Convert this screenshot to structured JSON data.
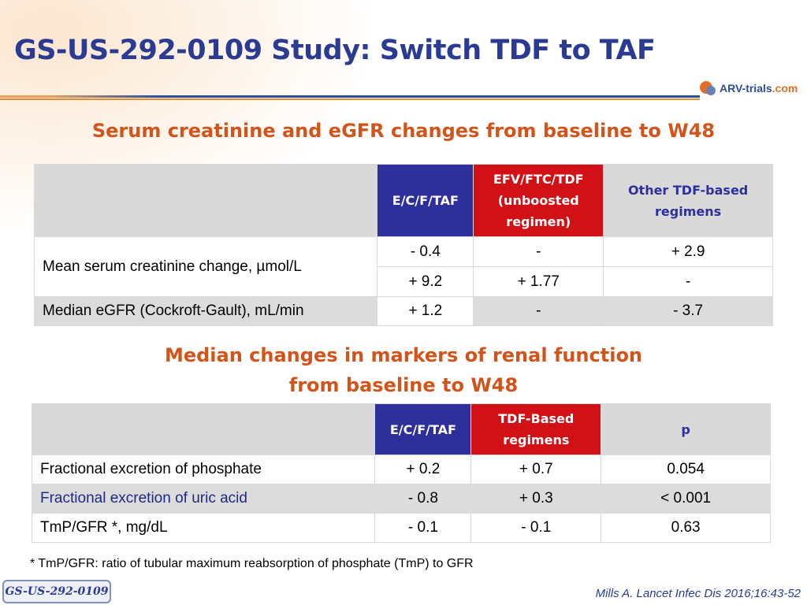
{
  "slide": {
    "title": "GS-US-292-0109 Study: Switch TDF to TAF",
    "logo": {
      "text_main": "ARV-trials",
      "text_suffix": ".com"
    },
    "section1_title": "Serum creatinine and eGFR changes from baseline to W48",
    "section2_title_line1": "Median changes in markers of renal function",
    "section2_title_line2": "from baseline to W48",
    "footnote": "* TmP/GFR: ratio of tubular maximum reabsorption of phosphate (TmP) to GFR",
    "study_badge": "GS-US-292-0109",
    "citation": "Mills A. Lancet Infec Dis 2016;16:43-52"
  },
  "table1": {
    "headers": {
      "col1": "E/C/F/TAF",
      "col2_line1": "EFV/FTC/TDF",
      "col2_line2": "(unboosted",
      "col2_line3": "regimen)",
      "col3_line1": "Other TDF-based",
      "col3_line2": "regimens"
    },
    "rows": [
      {
        "label": "Mean serum creatinine change, µmol/L",
        "r1": [
          "- 0.4",
          "-",
          "+ 2.9"
        ],
        "r2": [
          "+ 9.2",
          "+ 1.77",
          "-"
        ]
      },
      {
        "label": "Median eGFR (Cockroft-Gault), mL/min",
        "values": [
          "+ 1.2",
          "-",
          "- 3.7"
        ]
      }
    ]
  },
  "table2": {
    "headers": {
      "col1": "E/C/F/TAF",
      "col2_line1": "TDF-Based",
      "col2_line2": "regimens",
      "col3": "p"
    },
    "rows": [
      {
        "label": "Fractional excretion of phosphate",
        "values": [
          "+ 0.2",
          "+ 0.7",
          "0.054"
        ]
      },
      {
        "label": "Fractional excretion of uric acid",
        "values": [
          "- 0.8",
          "+ 0.3",
          "< 0.001"
        ]
      },
      {
        "label": "TmP/GFR *, mg/dL",
        "values": [
          "- 0.1",
          "- 0.1",
          "0.63"
        ]
      }
    ]
  },
  "colors": {
    "title_blue": "#2b3b93",
    "section_orange": "#d2541a",
    "header_blue": "#2d2f9a",
    "header_red": "#d11116",
    "grey": "#d9d9d9"
  }
}
